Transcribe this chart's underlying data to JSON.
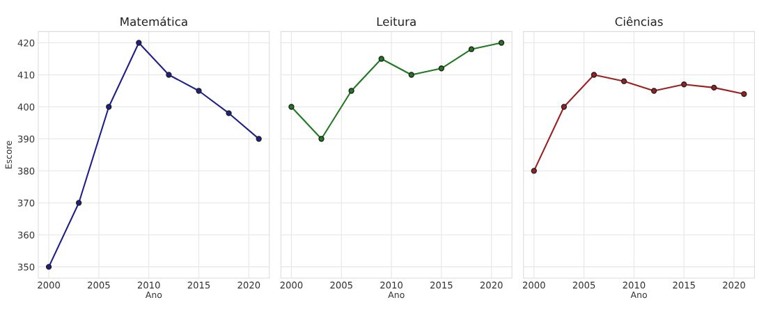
{
  "chart_data": [
    {
      "type": "line",
      "title": "Matemática",
      "xlabel": "Ano",
      "ylabel": "Escore",
      "x": [
        2000,
        2003,
        2006,
        2009,
        2012,
        2015,
        2018,
        2021
      ],
      "series": [
        {
          "color": "#1f1f8a",
          "values": [
            350,
            370,
            400,
            420,
            410,
            405,
            398,
            390
          ]
        }
      ],
      "xlim": [
        1998.95,
        2022.05
      ],
      "ylim": [
        346.5,
        423.5
      ],
      "xticks": [
        2000,
        2005,
        2010,
        2015,
        2020
      ],
      "yticks": [
        350,
        360,
        370,
        380,
        390,
        400,
        410,
        420
      ],
      "grid": true,
      "marker": "circle",
      "line_style": "solid"
    },
    {
      "type": "line",
      "title": "Leitura",
      "xlabel": "Ano",
      "x": [
        2000,
        2003,
        2006,
        2009,
        2012,
        2015,
        2018,
        2021
      ],
      "series": [
        {
          "color": "#1f7a1f",
          "values": [
            400,
            390,
            405,
            415,
            410,
            412,
            418,
            420
          ]
        }
      ],
      "xlim": [
        1998.95,
        2022.05
      ],
      "ylim": [
        346.5,
        423.5
      ],
      "xticks": [
        2000,
        2005,
        2010,
        2015,
        2020
      ],
      "yticks": [
        350,
        360,
        370,
        380,
        390,
        400,
        410,
        420
      ],
      "grid": true,
      "marker": "circle",
      "line_style": "solid",
      "tick_labels": "x"
    },
    {
      "type": "line",
      "title": "Ciências",
      "xlabel": "Ano",
      "x": [
        2000,
        2003,
        2006,
        2009,
        2012,
        2015,
        2018,
        2021
      ],
      "series": [
        {
          "color": "#9e1f1f",
          "values": [
            380,
            400,
            410,
            408,
            405,
            407,
            406,
            404
          ]
        }
      ],
      "xlim": [
        1998.95,
        2022.05
      ],
      "ylim": [
        346.5,
        423.5
      ],
      "xticks": [
        2000,
        2005,
        2010,
        2015,
        2020
      ],
      "yticks": [
        350,
        360,
        370,
        380,
        390,
        400,
        410,
        420
      ],
      "grid": true,
      "marker": "circle",
      "line_style": "solid",
      "tick_labels": "x"
    }
  ]
}
